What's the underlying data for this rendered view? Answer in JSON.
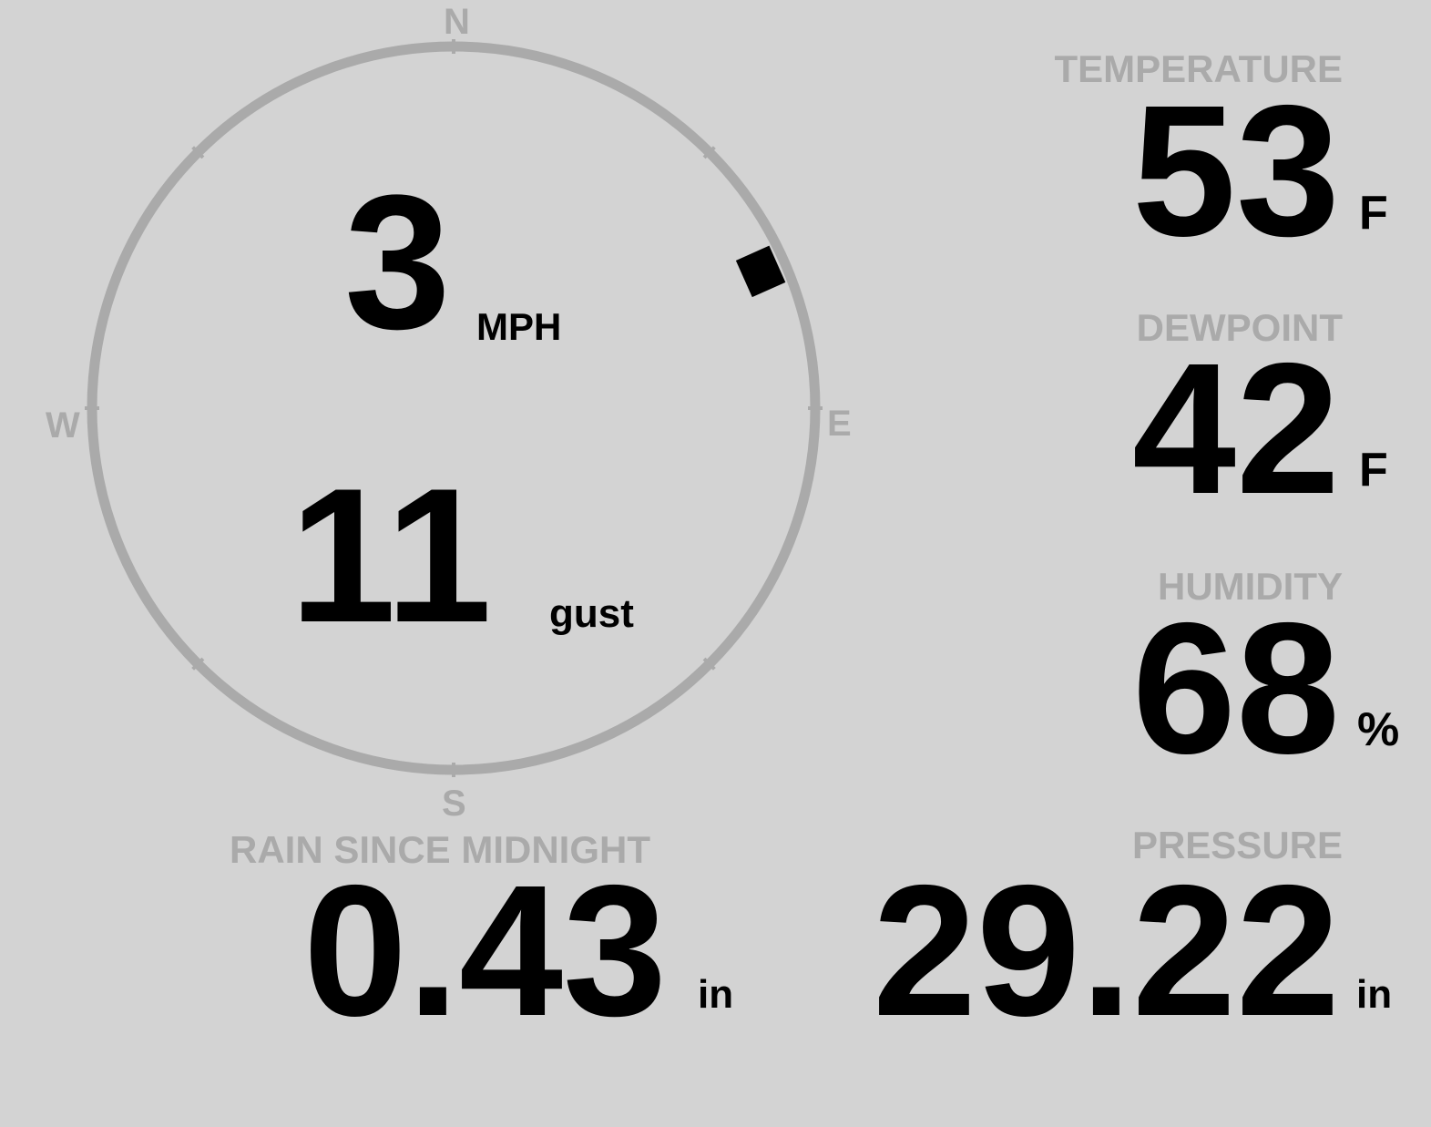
{
  "wind": {
    "speed": "3",
    "speed_unit": "MPH",
    "gust": "11",
    "gust_label": "gust",
    "direction_degrees": 66,
    "cardinals": {
      "n": "N",
      "e": "E",
      "s": "S",
      "w": "W"
    }
  },
  "temperature": {
    "label": "TEMPERATURE",
    "value": "53",
    "unit": "F"
  },
  "dewpoint": {
    "label": "DEWPOINT",
    "value": "42",
    "unit": "F"
  },
  "humidity": {
    "label": "HUMIDITY",
    "value": "68",
    "unit": "%"
  },
  "rain": {
    "label": "RAIN SINCE MIDNIGHT",
    "value": "0.43",
    "unit": "in"
  },
  "pressure": {
    "label": "PRESSURE",
    "value": "29.22",
    "unit": "in"
  },
  "colors": {
    "background": "#d3d3d3",
    "ring": "#aaaaaa",
    "text": "#000000",
    "label": "#aaaaaa"
  }
}
